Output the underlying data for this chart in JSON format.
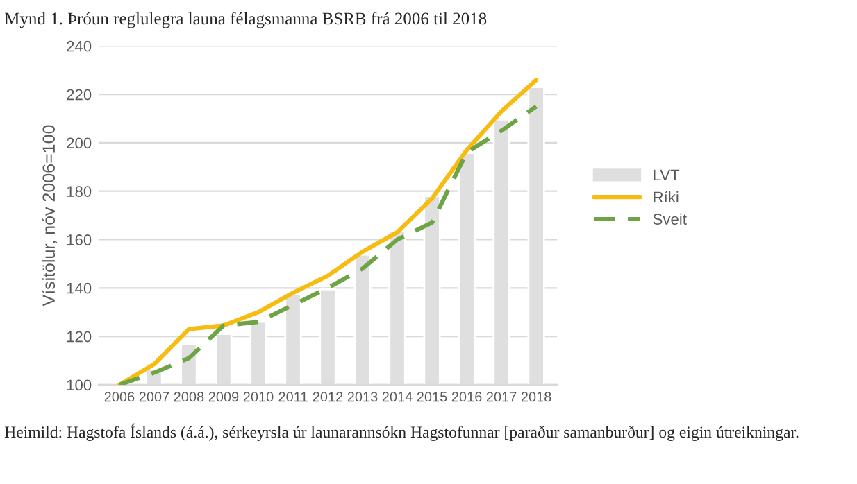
{
  "chart_data": {
    "type": "bar",
    "title": "Mynd 1. Þróun reglulegra launa félagsmanna BSRB frá 2006 til 2018",
    "ylabel": "Vísitölur, nóv 2006=100",
    "categories": [
      "2006",
      "2007",
      "2008",
      "2009",
      "2010",
      "2011",
      "2012",
      "2013",
      "2014",
      "2015",
      "2016",
      "2017",
      "2018"
    ],
    "series": [
      {
        "name": "LVT",
        "color": "#e0dfdf",
        "values": [
          100,
          106.7,
          116.7,
          121,
          126,
          137.5,
          139.4,
          153.8,
          163.5,
          178,
          195.8,
          209.6,
          223
        ]
      },
      {
        "name": "Ríki",
        "type": "line",
        "line_style": "solid",
        "color": "#f6bc11",
        "values": [
          100,
          108.5,
          123,
          124.5,
          130,
          138,
          145,
          155,
          163,
          177,
          197,
          213,
          226
        ]
      },
      {
        "name": "Sveit",
        "type": "line",
        "line_style": "dashed",
        "color": "#6fa446",
        "values": [
          100,
          105,
          111,
          124.5,
          126,
          133,
          140,
          148,
          160,
          167,
          196,
          205,
          215
        ]
      }
    ],
    "ylim": [
      100,
      240
    ],
    "yticks": [
      100,
      120,
      140,
      160,
      180,
      200,
      220,
      240
    ],
    "grid": "y",
    "legend": "right",
    "annotations": [
      "Heimild: Hagstofa Íslands (á.á.), sérkeyrsla úr launarannsókn Hagstofunnar [paraður samanburður] og eigin útreikningar."
    ]
  }
}
